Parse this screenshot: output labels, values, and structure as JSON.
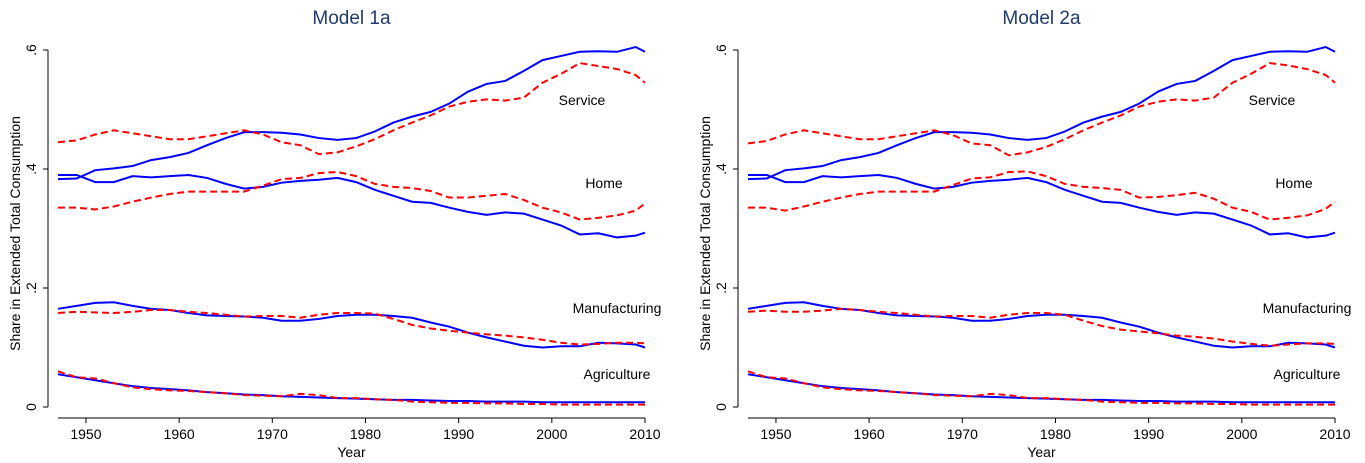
{
  "chart_data": [
    {
      "type": "line",
      "title": "Model 1a",
      "xlabel": "Year",
      "ylabel": "Share in Extended Total Consumption",
      "x": [
        1947,
        1949,
        1951,
        1953,
        1955,
        1957,
        1959,
        1961,
        1963,
        1965,
        1967,
        1969,
        1971,
        1973,
        1975,
        1977,
        1979,
        1981,
        1983,
        1985,
        1987,
        1989,
        1991,
        1993,
        1995,
        1997,
        1999,
        2001,
        2003,
        2005,
        2007,
        2009,
        2010
      ],
      "xlim": [
        1947,
        2010
      ],
      "xticks": [
        1950,
        1960,
        1970,
        1980,
        1990,
        2000,
        2010
      ],
      "ylim": [
        0,
        0.6
      ],
      "yticks": [
        0,
        {
          "value": 0.2,
          "label": ".2"
        },
        {
          "value": 0.4,
          "label": ".4"
        },
        {
          "value": 0.6,
          "label": ".6"
        }
      ],
      "annotations": [
        "Service",
        "Home",
        "Manufacturing",
        "Agriculture"
      ],
      "series": [
        {
          "color": "#0000ff",
          "line_style": "solid",
          "values": [
            0.383,
            0.384,
            0.398,
            0.401,
            0.405,
            0.415,
            0.42,
            0.427,
            0.44,
            0.452,
            0.462,
            0.462,
            0.461,
            0.458,
            0.452,
            0.449,
            0.452,
            0.463,
            0.478,
            0.488,
            0.496,
            0.51,
            0.53,
            0.543,
            0.548,
            0.565,
            0.583,
            0.59,
            0.597,
            0.598,
            0.597,
            0.605,
            0.597
          ]
        },
        {
          "color": "#ff0000",
          "line_style": "dashed",
          "values": [
            0.445,
            0.448,
            0.458,
            0.465,
            0.46,
            0.455,
            0.45,
            0.45,
            0.455,
            0.46,
            0.465,
            0.458,
            0.445,
            0.44,
            0.425,
            0.428,
            0.438,
            0.45,
            0.465,
            0.478,
            0.49,
            0.505,
            0.513,
            0.517,
            0.515,
            0.52,
            0.545,
            0.56,
            0.578,
            0.573,
            0.568,
            0.558,
            0.545
          ]
        },
        {
          "color": "#0000ff",
          "line_style": "solid",
          "values": [
            0.39,
            0.39,
            0.378,
            0.378,
            0.388,
            0.386,
            0.388,
            0.39,
            0.385,
            0.375,
            0.367,
            0.37,
            0.377,
            0.38,
            0.382,
            0.385,
            0.378,
            0.365,
            0.355,
            0.345,
            0.343,
            0.335,
            0.328,
            0.323,
            0.327,
            0.325,
            0.315,
            0.305,
            0.29,
            0.292,
            0.285,
            0.288,
            0.293
          ]
        },
        {
          "color": "#ff0000",
          "line_style": "dashed",
          "values": [
            0.335,
            0.335,
            0.332,
            0.337,
            0.345,
            0.352,
            0.358,
            0.362,
            0.362,
            0.362,
            0.362,
            0.372,
            0.383,
            0.385,
            0.393,
            0.395,
            0.388,
            0.375,
            0.37,
            0.368,
            0.363,
            0.352,
            0.352,
            0.355,
            0.358,
            0.348,
            0.335,
            0.327,
            0.315,
            0.318,
            0.322,
            0.33,
            0.342
          ]
        },
        {
          "color": "#0000ff",
          "line_style": "solid",
          "values": [
            0.165,
            0.17,
            0.175,
            0.176,
            0.17,
            0.165,
            0.163,
            0.158,
            0.154,
            0.153,
            0.152,
            0.15,
            0.145,
            0.145,
            0.148,
            0.153,
            0.155,
            0.155,
            0.153,
            0.15,
            0.142,
            0.135,
            0.125,
            0.117,
            0.11,
            0.103,
            0.1,
            0.102,
            0.102,
            0.108,
            0.107,
            0.105,
            0.1
          ]
        },
        {
          "color": "#ff0000",
          "line_style": "dashed",
          "values": [
            0.158,
            0.16,
            0.159,
            0.158,
            0.16,
            0.163,
            0.163,
            0.16,
            0.158,
            0.155,
            0.152,
            0.153,
            0.153,
            0.15,
            0.155,
            0.158,
            0.158,
            0.157,
            0.148,
            0.138,
            0.132,
            0.128,
            0.125,
            0.122,
            0.12,
            0.117,
            0.113,
            0.108,
            0.105,
            0.106,
            0.108,
            0.108,
            0.107
          ]
        },
        {
          "color": "#0000ff",
          "line_style": "solid",
          "values": [
            0.055,
            0.05,
            0.045,
            0.04,
            0.035,
            0.032,
            0.03,
            0.028,
            0.025,
            0.023,
            0.021,
            0.02,
            0.018,
            0.017,
            0.016,
            0.015,
            0.014,
            0.013,
            0.012,
            0.012,
            0.011,
            0.01,
            0.01,
            0.009,
            0.009,
            0.009,
            0.008,
            0.008,
            0.008,
            0.008,
            0.008,
            0.008,
            0.008
          ]
        },
        {
          "color": "#ff0000",
          "line_style": "dashed",
          "values": [
            0.06,
            0.05,
            0.048,
            0.04,
            0.033,
            0.03,
            0.028,
            0.027,
            0.025,
            0.023,
            0.02,
            0.019,
            0.018,
            0.022,
            0.02,
            0.015,
            0.015,
            0.013,
            0.012,
            0.009,
            0.008,
            0.007,
            0.007,
            0.006,
            0.006,
            0.005,
            0.005,
            0.004,
            0.004,
            0.004,
            0.004,
            0.004,
            0.004
          ]
        }
      ]
    },
    {
      "type": "line",
      "title": "Model 2a",
      "xlabel": "Year",
      "ylabel": "Share in Extended Total Consumption",
      "x": [
        1947,
        1949,
        1951,
        1953,
        1955,
        1957,
        1959,
        1961,
        1963,
        1965,
        1967,
        1969,
        1971,
        1973,
        1975,
        1977,
        1979,
        1981,
        1983,
        1985,
        1987,
        1989,
        1991,
        1993,
        1995,
        1997,
        1999,
        2001,
        2003,
        2005,
        2007,
        2009,
        2010
      ],
      "xlim": [
        1947,
        2010
      ],
      "xticks": [
        1950,
        1960,
        1970,
        1980,
        1990,
        2000,
        2010
      ],
      "ylim": [
        0,
        0.6
      ],
      "yticks": [
        0,
        {
          "value": 0.2,
          "label": ".2"
        },
        {
          "value": 0.4,
          "label": ".4"
        },
        {
          "value": 0.6,
          "label": ".6"
        }
      ],
      "annotations": [
        "Service",
        "Home",
        "Manufacturing",
        "Agriculture"
      ],
      "series": [
        {
          "color": "#0000ff",
          "line_style": "solid",
          "values": [
            0.383,
            0.384,
            0.398,
            0.401,
            0.405,
            0.415,
            0.42,
            0.427,
            0.44,
            0.452,
            0.462,
            0.462,
            0.461,
            0.458,
            0.452,
            0.449,
            0.452,
            0.463,
            0.478,
            0.488,
            0.496,
            0.51,
            0.53,
            0.543,
            0.548,
            0.565,
            0.583,
            0.59,
            0.597,
            0.598,
            0.597,
            0.605,
            0.597
          ]
        },
        {
          "color": "#ff0000",
          "line_style": "dashed",
          "values": [
            0.443,
            0.447,
            0.458,
            0.465,
            0.46,
            0.455,
            0.45,
            0.45,
            0.455,
            0.46,
            0.465,
            0.457,
            0.443,
            0.44,
            0.423,
            0.428,
            0.437,
            0.45,
            0.465,
            0.478,
            0.49,
            0.505,
            0.513,
            0.517,
            0.515,
            0.52,
            0.545,
            0.56,
            0.578,
            0.574,
            0.568,
            0.558,
            0.545
          ]
        },
        {
          "color": "#0000ff",
          "line_style": "solid",
          "values": [
            0.39,
            0.39,
            0.378,
            0.378,
            0.388,
            0.386,
            0.388,
            0.39,
            0.385,
            0.375,
            0.367,
            0.37,
            0.377,
            0.38,
            0.382,
            0.385,
            0.378,
            0.365,
            0.355,
            0.345,
            0.343,
            0.335,
            0.328,
            0.323,
            0.327,
            0.325,
            0.315,
            0.305,
            0.29,
            0.292,
            0.285,
            0.288,
            0.293
          ]
        },
        {
          "color": "#ff0000",
          "line_style": "dashed",
          "values": [
            0.335,
            0.335,
            0.33,
            0.337,
            0.345,
            0.352,
            0.358,
            0.362,
            0.362,
            0.362,
            0.362,
            0.373,
            0.384,
            0.386,
            0.395,
            0.396,
            0.388,
            0.375,
            0.37,
            0.368,
            0.365,
            0.352,
            0.353,
            0.356,
            0.36,
            0.35,
            0.335,
            0.328,
            0.315,
            0.318,
            0.322,
            0.333,
            0.345
          ]
        },
        {
          "color": "#0000ff",
          "line_style": "solid",
          "values": [
            0.165,
            0.17,
            0.175,
            0.176,
            0.17,
            0.165,
            0.163,
            0.158,
            0.154,
            0.153,
            0.152,
            0.15,
            0.145,
            0.145,
            0.148,
            0.153,
            0.155,
            0.155,
            0.153,
            0.15,
            0.142,
            0.135,
            0.125,
            0.117,
            0.11,
            0.103,
            0.1,
            0.102,
            0.102,
            0.108,
            0.107,
            0.105,
            0.1
          ]
        },
        {
          "color": "#ff0000",
          "line_style": "dashed",
          "values": [
            0.16,
            0.162,
            0.16,
            0.16,
            0.162,
            0.165,
            0.163,
            0.16,
            0.158,
            0.155,
            0.152,
            0.153,
            0.153,
            0.15,
            0.155,
            0.158,
            0.158,
            0.155,
            0.145,
            0.136,
            0.13,
            0.127,
            0.124,
            0.12,
            0.118,
            0.115,
            0.11,
            0.106,
            0.103,
            0.105,
            0.107,
            0.107,
            0.106
          ]
        },
        {
          "color": "#0000ff",
          "line_style": "solid",
          "values": [
            0.055,
            0.05,
            0.045,
            0.04,
            0.035,
            0.032,
            0.03,
            0.028,
            0.025,
            0.023,
            0.021,
            0.02,
            0.018,
            0.017,
            0.016,
            0.015,
            0.014,
            0.013,
            0.012,
            0.012,
            0.011,
            0.01,
            0.01,
            0.009,
            0.009,
            0.009,
            0.008,
            0.008,
            0.008,
            0.008,
            0.008,
            0.008,
            0.008
          ]
        },
        {
          "color": "#ff0000",
          "line_style": "dashed",
          "values": [
            0.06,
            0.05,
            0.048,
            0.04,
            0.033,
            0.03,
            0.028,
            0.027,
            0.025,
            0.023,
            0.02,
            0.019,
            0.018,
            0.022,
            0.02,
            0.015,
            0.015,
            0.013,
            0.012,
            0.009,
            0.008,
            0.007,
            0.007,
            0.006,
            0.006,
            0.005,
            0.005,
            0.004,
            0.004,
            0.004,
            0.004,
            0.004,
            0.004
          ]
        }
      ]
    }
  ]
}
